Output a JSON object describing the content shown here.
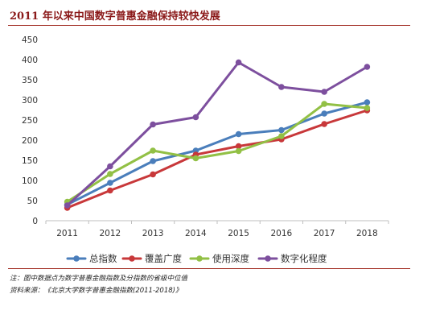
{
  "chart_data": {
    "type": "line",
    "title": "2011 年以来中国数字普惠金融保持较快发展",
    "x": [
      "2011",
      "2012",
      "2013",
      "2014",
      "2015",
      "2016",
      "2017",
      "2018"
    ],
    "ylim": [
      0,
      450
    ],
    "yticks": [
      0,
      50,
      100,
      150,
      200,
      250,
      300,
      350,
      400,
      450
    ],
    "grid": false,
    "legend": "bottom",
    "series": [
      {
        "name": "总指数",
        "color": "#4a7ebb",
        "values": [
          40,
          94,
          148,
          174,
          215,
          225,
          266,
          294
        ]
      },
      {
        "name": "覆盖广度",
        "color": "#c8383a",
        "values": [
          32,
          75,
          115,
          164,
          185,
          202,
          240,
          274
        ]
      },
      {
        "name": "使用深度",
        "color": "#92c045",
        "values": [
          47,
          116,
          174,
          155,
          173,
          210,
          290,
          280
        ]
      },
      {
        "name": "数字化程度",
        "color": "#7d4f9e",
        "values": [
          38,
          135,
          239,
          257,
          393,
          332,
          320,
          382
        ]
      }
    ]
  },
  "notes": {
    "note_line": "注：图中数据点为数字普惠金融指数及分指数的省级中位值",
    "source_line": "资料来源：《北京大学数字普惠金融指数(2011-2018)》"
  }
}
